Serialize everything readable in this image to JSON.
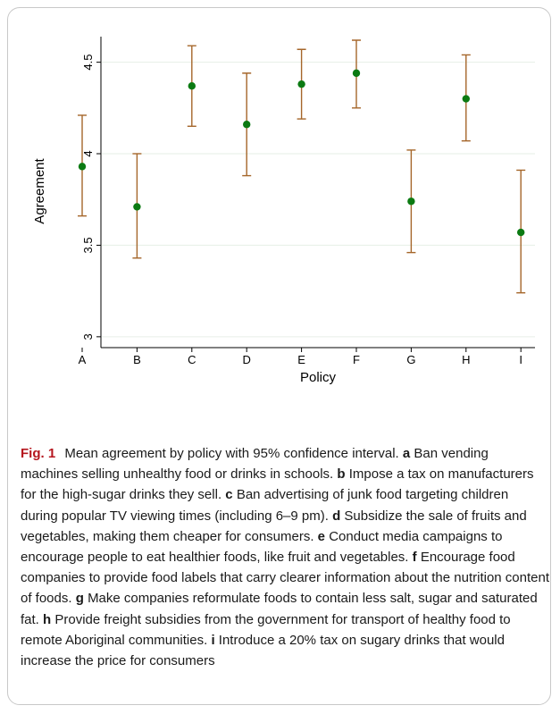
{
  "chart_data": {
    "type": "scatter",
    "xlabel": "Policy",
    "ylabel": "Agreement",
    "ylim": [
      2.97,
      4.62
    ],
    "yticks": [
      3,
      3.5,
      4,
      4.5
    ],
    "ytick_labels": [
      "3",
      "3.5",
      "4",
      "4.5"
    ],
    "grid": true,
    "categories": [
      "A",
      "B",
      "C",
      "D",
      "E",
      "F",
      "G",
      "H",
      "I"
    ],
    "mean": [
      3.93,
      3.71,
      4.37,
      4.16,
      4.38,
      4.44,
      3.74,
      4.3,
      3.57
    ],
    "ci_low": [
      3.66,
      3.43,
      4.15,
      3.88,
      4.19,
      4.25,
      3.46,
      4.07,
      3.24
    ],
    "ci_high": [
      4.21,
      4.0,
      4.59,
      4.44,
      4.57,
      4.62,
      4.02,
      4.54,
      3.91
    ],
    "colors": {
      "point": "#0b7a12",
      "errorbar": "#a5662a",
      "grid": "#e6efe6",
      "axis": "#000000"
    }
  },
  "caption": {
    "fig_label": "Fig. 1",
    "intro": "Mean agreement by policy with 95% confidence interval.",
    "items": [
      {
        "key": "a",
        "text": "Ban vending machines selling unhealthy food or drinks in schools."
      },
      {
        "key": "b",
        "text": "Impose a tax on manufacturers for the high-sugar drinks they sell."
      },
      {
        "key": "c",
        "text": "Ban advertising of junk food targeting children during popular TV viewing times (including 6–9 pm)."
      },
      {
        "key": "d",
        "text": "Subsidize the sale of fruits and vegetables, making them cheaper for consumers."
      },
      {
        "key": "e",
        "text": "Conduct media campaigns to encourage people to eat healthier foods, like fruit and vegetables."
      },
      {
        "key": "f",
        "text": "Encourage food companies to provide food labels that carry clearer information about the nutrition content of foods."
      },
      {
        "key": "g",
        "text": "Make companies reformulate foods to contain less salt, sugar and saturated fat."
      },
      {
        "key": "h",
        "text": "Provide freight subsidies from the government for transport of healthy food to remote Aboriginal communities."
      },
      {
        "key": "i",
        "text": "Introduce a 20% tax on sugary drinks that would increase the price for consumers"
      }
    ]
  }
}
